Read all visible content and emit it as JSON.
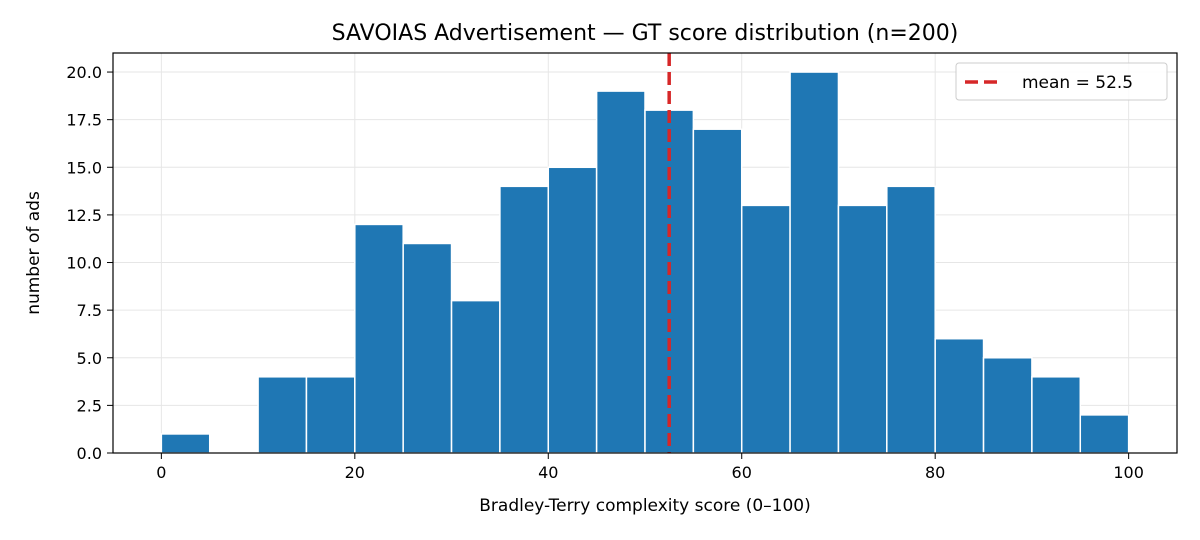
{
  "chart_data": {
    "type": "bar",
    "title": "SAVOIAS Advertisement — GT score distribution (n=200)",
    "xlabel": "Bradley-Terry complexity score  (0–100)",
    "ylabel": "number of ads",
    "bin_edges": [
      0,
      5,
      10,
      15,
      20,
      25,
      30,
      35,
      40,
      45,
      50,
      55,
      60,
      65,
      70,
      75,
      80,
      85,
      90,
      95,
      100
    ],
    "values": [
      1,
      0,
      4,
      4,
      12,
      11,
      8,
      14,
      15,
      19,
      18,
      17,
      13,
      20,
      13,
      14,
      6,
      5,
      4,
      2
    ],
    "xlim": [
      -5,
      105
    ],
    "ylim": [
      0,
      21
    ],
    "x_ticks": [
      0,
      20,
      40,
      60,
      80,
      100
    ],
    "y_ticks": [
      0,
      2.5,
      5,
      7.5,
      10,
      12.5,
      15,
      17.5,
      20
    ],
    "y_tick_labels": [
      "0.0",
      "2.5",
      "5.0",
      "7.5",
      "10.0",
      "12.5",
      "15.0",
      "17.5",
      "20.0"
    ],
    "bar_color": "#1f77b4",
    "grid": true,
    "mean_line": {
      "value": 52.5,
      "label": "mean = 52.5",
      "color": "#d62728",
      "style": "dashed"
    },
    "legend_position": "top-right"
  }
}
